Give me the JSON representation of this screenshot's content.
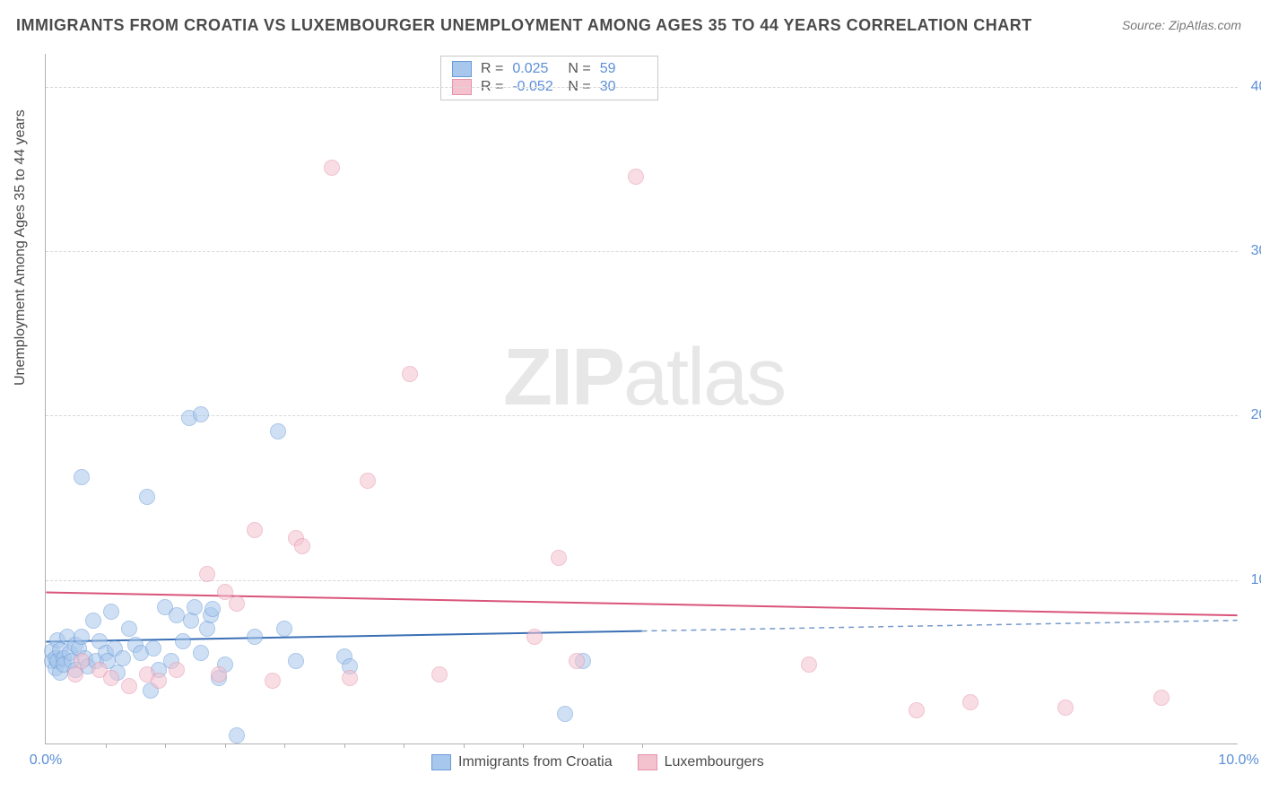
{
  "title": "IMMIGRANTS FROM CROATIA VS LUXEMBOURGER UNEMPLOYMENT AMONG AGES 35 TO 44 YEARS CORRELATION CHART",
  "source": "Source: ZipAtlas.com",
  "y_axis_title": "Unemployment Among Ages 35 to 44 years",
  "watermark_bold": "ZIP",
  "watermark_rest": "atlas",
  "chart": {
    "type": "scatter",
    "xlim": [
      0,
      10
    ],
    "ylim": [
      0,
      42
    ],
    "x_ticks": [
      0,
      10
    ],
    "x_tick_labels": [
      "0.0%",
      "10.0%"
    ],
    "x_minor_ticks": [
      0.5,
      1.0,
      1.5,
      2.0,
      2.5,
      3.0,
      3.5,
      4.0,
      4.5,
      5.0
    ],
    "y_ticks": [
      10,
      20,
      30,
      40
    ],
    "y_tick_labels": [
      "10.0%",
      "20.0%",
      "30.0%",
      "40.0%"
    ],
    "background_color": "#ffffff",
    "grid_color": "#d8d8d8",
    "axis_color": "#b0b0b0",
    "point_radius": 9,
    "point_opacity": 0.55,
    "series": [
      {
        "name": "Immigrants from Croatia",
        "fill": "#a8c7ec",
        "stroke": "#6a9bd8",
        "R": "0.025",
        "N": "59",
        "trend": {
          "y_at_x0": 6.2,
          "y_at_x10": 7.5,
          "solid_until_x": 5.0,
          "color": "#3b6fb5",
          "width": 2
        },
        "points": [
          [
            0.05,
            5.0
          ],
          [
            0.05,
            5.6
          ],
          [
            0.08,
            4.6
          ],
          [
            0.08,
            5.2
          ],
          [
            0.1,
            6.3
          ],
          [
            0.1,
            5.0
          ],
          [
            0.12,
            4.3
          ],
          [
            0.12,
            5.7
          ],
          [
            0.15,
            5.2
          ],
          [
            0.15,
            4.8
          ],
          [
            0.18,
            6.5
          ],
          [
            0.2,
            5.5
          ],
          [
            0.22,
            5.0
          ],
          [
            0.25,
            6.0
          ],
          [
            0.25,
            4.5
          ],
          [
            0.28,
            5.8
          ],
          [
            0.3,
            16.2
          ],
          [
            0.3,
            6.5
          ],
          [
            0.33,
            5.2
          ],
          [
            0.35,
            4.7
          ],
          [
            0.4,
            7.5
          ],
          [
            0.42,
            5.0
          ],
          [
            0.45,
            6.2
          ],
          [
            0.5,
            5.5
          ],
          [
            0.52,
            5.0
          ],
          [
            0.55,
            8.0
          ],
          [
            0.58,
            5.8
          ],
          [
            0.6,
            4.3
          ],
          [
            0.65,
            5.2
          ],
          [
            0.7,
            7.0
          ],
          [
            0.75,
            6.0
          ],
          [
            0.8,
            5.5
          ],
          [
            0.85,
            15.0
          ],
          [
            0.88,
            3.2
          ],
          [
            0.9,
            5.8
          ],
          [
            0.95,
            4.5
          ],
          [
            1.0,
            8.3
          ],
          [
            1.05,
            5.0
          ],
          [
            1.1,
            7.8
          ],
          [
            1.15,
            6.2
          ],
          [
            1.2,
            19.8
          ],
          [
            1.22,
            7.5
          ],
          [
            1.25,
            8.3
          ],
          [
            1.3,
            20.0
          ],
          [
            1.3,
            5.5
          ],
          [
            1.35,
            7.0
          ],
          [
            1.38,
            7.8
          ],
          [
            1.4,
            8.2
          ],
          [
            1.45,
            4.0
          ],
          [
            1.5,
            4.8
          ],
          [
            1.6,
            0.5
          ],
          [
            1.75,
            6.5
          ],
          [
            1.95,
            19.0
          ],
          [
            2.0,
            7.0
          ],
          [
            2.1,
            5.0
          ],
          [
            2.5,
            5.3
          ],
          [
            2.55,
            4.7
          ],
          [
            4.35,
            1.8
          ],
          [
            4.5,
            5.0
          ]
        ]
      },
      {
        "name": "Luxembourgers",
        "fill": "#f4c2cf",
        "stroke": "#e593ab",
        "R": "-0.052",
        "N": "30",
        "trend": {
          "y_at_x0": 9.2,
          "y_at_x10": 7.8,
          "solid_until_x": 10.0,
          "color": "#d9547a",
          "width": 2
        },
        "points": [
          [
            0.25,
            4.2
          ],
          [
            0.3,
            5.0
          ],
          [
            0.45,
            4.5
          ],
          [
            0.55,
            4.0
          ],
          [
            0.7,
            3.5
          ],
          [
            0.85,
            4.2
          ],
          [
            0.95,
            3.8
          ],
          [
            1.1,
            4.5
          ],
          [
            1.35,
            10.3
          ],
          [
            1.45,
            4.2
          ],
          [
            1.5,
            9.2
          ],
          [
            1.6,
            8.5
          ],
          [
            1.75,
            13.0
          ],
          [
            1.9,
            3.8
          ],
          [
            2.1,
            12.5
          ],
          [
            2.15,
            12.0
          ],
          [
            2.4,
            35.0
          ],
          [
            2.55,
            4.0
          ],
          [
            2.7,
            16.0
          ],
          [
            3.05,
            22.5
          ],
          [
            3.3,
            4.2
          ],
          [
            4.1,
            6.5
          ],
          [
            4.3,
            11.3
          ],
          [
            4.45,
            5.0
          ],
          [
            4.95,
            34.5
          ],
          [
            6.4,
            4.8
          ],
          [
            7.3,
            2.0
          ],
          [
            7.75,
            2.5
          ],
          [
            8.55,
            2.2
          ],
          [
            9.35,
            2.8
          ]
        ]
      }
    ]
  },
  "legend_series_label_1": "Immigrants from Croatia",
  "legend_series_label_2": "Luxembourgers",
  "stat_R_label": "R  =",
  "stat_N_label": "N  ="
}
